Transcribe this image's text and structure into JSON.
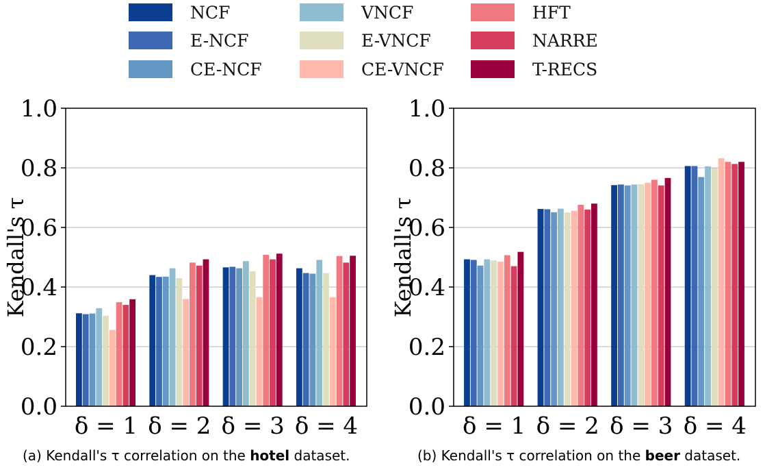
{
  "legend": {
    "placement": "top-center",
    "columns": 3,
    "entries": [
      {
        "name": "NCF",
        "color": "#0b3d91"
      },
      {
        "name": "E-NCF",
        "color": "#3d68b4"
      },
      {
        "name": "CE-NCF",
        "color": "#6497c4"
      },
      {
        "name": "VNCF",
        "color": "#8fbdcf"
      },
      {
        "name": "E-VNCF",
        "color": "#dfdfbf"
      },
      {
        "name": "CE-VNCF",
        "color": "#ffb8aa"
      },
      {
        "name": "HFT",
        "color": "#f07880"
      },
      {
        "name": "NARRE",
        "color": "#d63c5c"
      },
      {
        "name": "T-RECS",
        "color": "#98003c"
      }
    ]
  },
  "chart_data": [
    {
      "type": "bar",
      "categories": [
        "δ = 1",
        "δ = 2",
        "δ = 3",
        "δ = 4"
      ],
      "ylabel": "Kendall's τ",
      "ylim": [
        0,
        1.0
      ],
      "yticks": [
        "0.0",
        "0.2",
        "0.4",
        "0.6",
        "0.8",
        "1.0"
      ],
      "grid": "horizontal",
      "caption": {
        "prefix": "(a) Kendall's τ correlation on the ",
        "bold": "hotel",
        "suffix": " dataset."
      },
      "series": [
        {
          "name": "NCF",
          "values": [
            0.312,
            0.44,
            0.466,
            0.463
          ]
        },
        {
          "name": "E-NCF",
          "values": [
            0.309,
            0.434,
            0.468,
            0.447
          ]
        },
        {
          "name": "CE-NCF",
          "values": [
            0.311,
            0.435,
            0.463,
            0.445
          ]
        },
        {
          "name": "VNCF",
          "values": [
            0.329,
            0.463,
            0.487,
            0.491
          ]
        },
        {
          "name": "E-VNCF",
          "values": [
            0.304,
            0.43,
            0.453,
            0.447
          ]
        },
        {
          "name": "CE-VNCF",
          "values": [
            0.256,
            0.36,
            0.366,
            0.366
          ]
        },
        {
          "name": "HFT",
          "values": [
            0.349,
            0.482,
            0.508,
            0.504
          ]
        },
        {
          "name": "NARRE",
          "values": [
            0.34,
            0.472,
            0.493,
            0.482
          ]
        },
        {
          "name": "T-RECS",
          "values": [
            0.359,
            0.493,
            0.512,
            0.505
          ]
        }
      ]
    },
    {
      "type": "bar",
      "categories": [
        "δ = 1",
        "δ = 2",
        "δ = 3",
        "δ = 4"
      ],
      "ylabel": "Kendall's τ",
      "ylim": [
        0,
        1.0
      ],
      "yticks": [
        "0.0",
        "0.2",
        "0.4",
        "0.6",
        "0.8",
        "1.0"
      ],
      "grid": "horizontal",
      "caption": {
        "prefix": "(b) Kendall's τ correlation on the ",
        "bold": "beer",
        "suffix": " dataset."
      },
      "series": [
        {
          "name": "NCF",
          "values": [
            0.493,
            0.662,
            0.742,
            0.806
          ]
        },
        {
          "name": "E-NCF",
          "values": [
            0.491,
            0.661,
            0.744,
            0.806
          ]
        },
        {
          "name": "CE-NCF",
          "values": [
            0.472,
            0.651,
            0.741,
            0.769
          ]
        },
        {
          "name": "VNCF",
          "values": [
            0.493,
            0.663,
            0.744,
            0.805
          ]
        },
        {
          "name": "E-VNCF",
          "values": [
            0.489,
            0.65,
            0.745,
            0.799
          ]
        },
        {
          "name": "CE-VNCF",
          "values": [
            0.485,
            0.656,
            0.75,
            0.832
          ]
        },
        {
          "name": "HFT",
          "values": [
            0.507,
            0.676,
            0.76,
            0.82
          ]
        },
        {
          "name": "NARRE",
          "values": [
            0.47,
            0.66,
            0.741,
            0.813
          ]
        },
        {
          "name": "T-RECS",
          "values": [
            0.518,
            0.68,
            0.766,
            0.82
          ]
        }
      ]
    }
  ]
}
